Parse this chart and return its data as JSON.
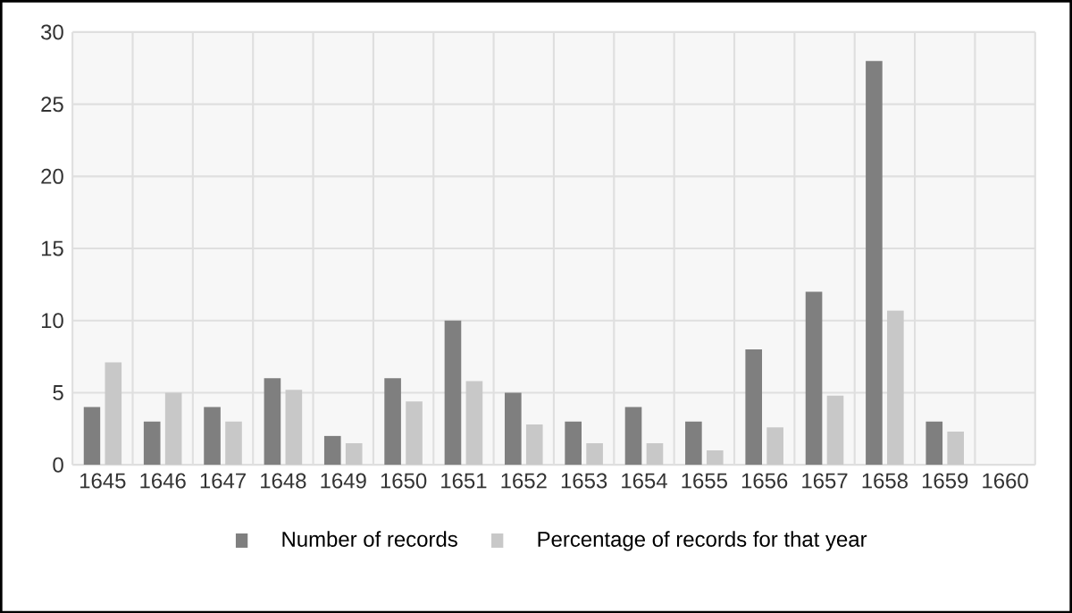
{
  "chart_data": {
    "type": "bar",
    "categories": [
      "1645",
      "1646",
      "1647",
      "1648",
      "1649",
      "1650",
      "1651",
      "1652",
      "1653",
      "1654",
      "1655",
      "1656",
      "1657",
      "1658",
      "1659",
      "1660"
    ],
    "series": [
      {
        "name": "Number of records",
        "color": "#7f7f7f",
        "values": [
          4,
          3,
          4,
          6,
          2,
          6,
          10,
          5,
          3,
          4,
          3,
          8,
          12,
          28,
          3,
          null
        ]
      },
      {
        "name": "Percentage of records for that year",
        "color": "#c8c8c8",
        "values": [
          7.1,
          5.0,
          3.0,
          5.2,
          1.5,
          4.4,
          5.8,
          2.8,
          1.5,
          1.5,
          1.0,
          2.6,
          4.8,
          10.7,
          2.3,
          null
        ]
      }
    ],
    "ylim": [
      0,
      30
    ],
    "yticks": [
      0,
      5,
      10,
      15,
      20,
      25,
      30
    ],
    "grid": true,
    "legend": "bottom"
  }
}
